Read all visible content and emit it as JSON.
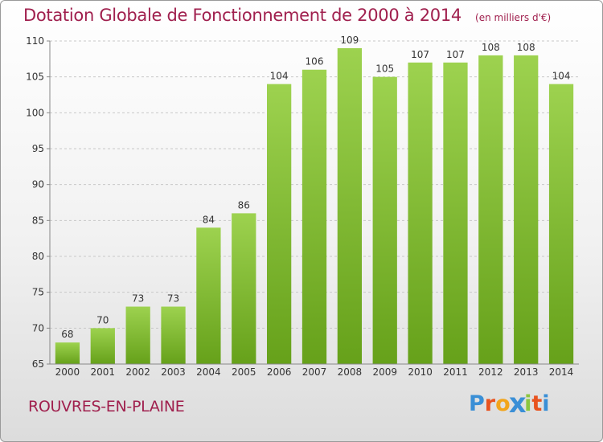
{
  "chart_data": {
    "type": "bar",
    "title": "Dotation Globale de Fonctionnement de 2000 à 2014",
    "subtitle": "(en milliers d'€)",
    "categories": [
      "2000",
      "2001",
      "2002",
      "2003",
      "2004",
      "2005",
      "2006",
      "2007",
      "2008",
      "2009",
      "2010",
      "2011",
      "2012",
      "2013",
      "2014"
    ],
    "values": [
      68,
      70,
      73,
      73,
      84,
      86,
      104,
      106,
      109,
      105,
      107,
      107,
      108,
      108,
      104
    ],
    "value_labels": [
      "68",
      "70",
      "73",
      "73",
      "84",
      "86",
      "104",
      "106",
      "109",
      "105",
      "107",
      "107",
      "108",
      "108",
      "104"
    ],
    "ylim": [
      65,
      110
    ],
    "yticks": [
      65,
      70,
      75,
      80,
      85,
      90,
      95,
      100,
      105,
      110
    ],
    "ytick_labels": [
      "65",
      "70",
      "75",
      "80",
      "85",
      "90",
      "95",
      "100",
      "105",
      "110"
    ],
    "grid": true,
    "bar_color_top": "#9dd24f",
    "bar_color_bottom": "#66a11a"
  },
  "commune": "ROUVRES-EN-PLAINE",
  "logo": {
    "letters": [
      "P",
      "r",
      "o",
      "x",
      "i",
      "t",
      "i"
    ],
    "colors": [
      "#3a8fd6",
      "#e8531f",
      "#f2a51c",
      "#3a8fd6",
      "#8cc63f",
      "#e8531f",
      "#3a8fd6"
    ]
  }
}
